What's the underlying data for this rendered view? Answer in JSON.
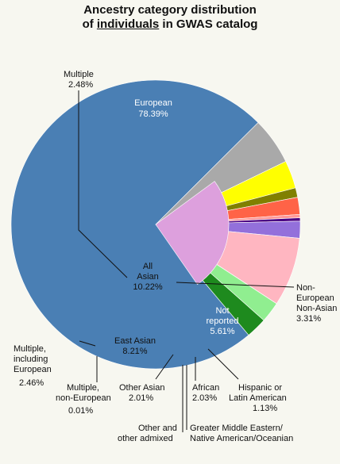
{
  "chart_data": {
    "type": "pie",
    "title_parts": [
      "Ancestry category distribution",
      "of ",
      "individuals",
      " in GWAS catalog"
    ],
    "slices": [
      {
        "name": "European",
        "value": 78.39,
        "label": "European",
        "pct": "78.39%",
        "color": "#4a7fb4"
      },
      {
        "name": "Not reported",
        "value": 5.61,
        "label": "Not reported",
        "pct": "5.61%",
        "color": "#a9a9a9"
      },
      {
        "name": "Non-European Non-Asian",
        "value": 3.31,
        "label": "Non-European Non-Asian",
        "pct": "3.31%",
        "color": "#ffff00"
      },
      {
        "name": "Hispanic or Latin American",
        "value": 1.13,
        "label": "Hispanic or Latin American",
        "pct": "1.13%",
        "color": "#808000"
      },
      {
        "name": "African",
        "value": 2.03,
        "label": "African",
        "pct": "2.03%",
        "color": "#ff6347"
      },
      {
        "name": "Greater Middle Eastern/ Native American/Oceanian",
        "value": 0.4,
        "label": "Greater Middle Eastern/ Native American/Oceanian",
        "pct": "",
        "color": "#ff9999"
      },
      {
        "name": "Other and other admixed",
        "value": 0.4,
        "label": "Other and other admixed",
        "pct": "",
        "color": "#4b0082"
      },
      {
        "name": "Other Asian",
        "value": 2.01,
        "label": "Other Asian",
        "pct": "2.01%",
        "color": "#9370db"
      },
      {
        "name": "East Asian",
        "value": 8.21,
        "label": "East Asian",
        "pct": "8.21%",
        "color": "#ffb6c1"
      },
      {
        "name": "Multiple, non-European",
        "value": 0.01,
        "label": "Multiple, non-European",
        "pct": "0.01%",
        "color": "#90ee90"
      },
      {
        "name": "Multiple, including European",
        "value": 2.46,
        "label": "Multiple, including European",
        "pct": "2.46%",
        "color": "#90ee90"
      },
      {
        "name": "Multiple",
        "value": 2.48,
        "label": "Multiple",
        "pct": "2.48%",
        "color": "#1e8a1e"
      }
    ],
    "inner_group": {
      "label_line1": "All",
      "label_line2": "Asian",
      "pct": "10.22%",
      "color": "#dda0dd"
    },
    "labels": {
      "multiple": [
        "Multiple",
        "2.48%"
      ],
      "european": [
        "European",
        "78.39%"
      ],
      "non_euro_non_asian": [
        "Non-",
        "European",
        "Non-Asian",
        "3.31%"
      ],
      "not_reported": [
        "Not",
        "reported",
        "5.61%"
      ],
      "multiple_incl_euro": [
        "Multiple,",
        "including",
        "European",
        "2.46%"
      ],
      "east_asian": [
        "East Asian",
        "8.21%"
      ],
      "multiple_non_euro": [
        "Multiple,",
        "non-European",
        "0.01%"
      ],
      "other_asian": [
        "Other Asian",
        "2.01%"
      ],
      "african": [
        "African",
        "2.03%"
      ],
      "hispanic": [
        "Hispanic or",
        "Latin American",
        "1.13%"
      ],
      "other_admixed": [
        "Other and",
        "other admixed"
      ],
      "greater_middle_eastern": [
        "Greater Middle Eastern/",
        "Native American/Oceanian"
      ]
    }
  }
}
